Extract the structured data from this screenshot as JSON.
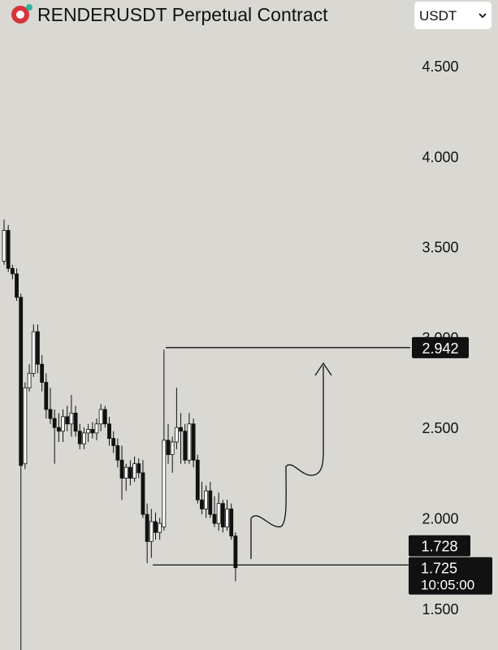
{
  "header": {
    "title": "RENDERUSDT Perpetual Contract",
    "currency": "USDT"
  },
  "chart_data": {
    "type": "candlestick",
    "open": [
      3.42,
      3.59,
      3.38,
      3.35,
      3.22,
      2.3,
      2.72,
      2.8,
      3.03,
      2.85,
      2.75,
      2.6,
      2.55,
      2.5,
      2.48,
      2.56,
      2.52,
      2.58,
      2.48,
      2.41,
      2.47,
      2.49,
      2.47,
      2.52,
      2.6,
      2.52,
      2.44,
      2.4,
      2.32,
      2.22,
      2.28,
      2.22,
      2.3,
      2.25,
      2.02,
      1.87,
      1.98,
      1.92,
      1.95,
      2.43,
      2.35,
      2.42,
      2.5,
      2.48,
      2.32,
      2.52,
      2.32,
      2.1,
      2.05,
      2.15,
      2.02,
      1.97,
      2.08,
      1.95,
      2.05,
      1.9
    ],
    "high": [
      3.65,
      3.62,
      3.4,
      3.38,
      3.24,
      2.75,
      2.85,
      3.07,
      3.07,
      2.9,
      2.8,
      2.72,
      2.6,
      2.58,
      2.6,
      2.62,
      2.68,
      2.62,
      2.52,
      2.5,
      2.52,
      2.53,
      2.55,
      2.63,
      2.62,
      2.56,
      2.48,
      2.44,
      2.4,
      2.3,
      2.32,
      2.34,
      2.33,
      2.32,
      2.08,
      2.05,
      2.03,
      2.0,
      2.93,
      2.52,
      2.45,
      2.72,
      2.58,
      2.52,
      2.58,
      2.55,
      2.35,
      2.2,
      2.18,
      2.2,
      2.12,
      2.14,
      2.1,
      2.1,
      2.08,
      1.92
    ],
    "low": [
      3.4,
      3.36,
      3.32,
      3.2,
      1.27,
      2.27,
      2.7,
      2.78,
      2.8,
      2.7,
      2.55,
      2.52,
      2.3,
      2.42,
      2.42,
      2.48,
      2.45,
      2.45,
      2.38,
      2.38,
      2.42,
      2.44,
      2.43,
      2.48,
      2.5,
      2.4,
      2.36,
      2.28,
      2.1,
      2.15,
      2.18,
      2.2,
      2.22,
      2.0,
      1.75,
      1.78,
      1.88,
      1.88,
      1.93,
      2.3,
      2.25,
      2.38,
      2.3,
      2.3,
      2.3,
      2.28,
      2.08,
      2.02,
      2.0,
      2.0,
      1.95,
      1.93,
      1.92,
      1.93,
      1.88,
      1.65
    ],
    "close": [
      3.59,
      3.38,
      3.35,
      3.22,
      2.29,
      2.72,
      2.8,
      3.03,
      2.85,
      2.75,
      2.6,
      2.55,
      2.5,
      2.48,
      2.56,
      2.52,
      2.58,
      2.48,
      2.41,
      2.47,
      2.49,
      2.47,
      2.52,
      2.6,
      2.52,
      2.44,
      2.4,
      2.32,
      2.22,
      2.28,
      2.22,
      2.3,
      2.25,
      2.02,
      1.87,
      1.98,
      1.92,
      1.97,
      2.43,
      2.35,
      2.42,
      2.5,
      2.48,
      2.32,
      2.52,
      2.32,
      2.1,
      2.05,
      2.15,
      2.02,
      1.97,
      2.08,
      1.95,
      2.05,
      1.9,
      1.725
    ],
    "ylim": [
      1.27,
      4.864
    ],
    "yticks": [
      {
        "value": 1.5,
        "label": "1.500"
      },
      {
        "value": 2.0,
        "label": "2.000"
      },
      {
        "value": 2.5,
        "label": "2.500"
      },
      {
        "value": 3.0,
        "label": "3.000"
      },
      {
        "value": 3.5,
        "label": "3.500"
      },
      {
        "value": 4.0,
        "label": "4.000"
      },
      {
        "value": 4.5,
        "label": "4.500"
      }
    ],
    "target_line": 2.942,
    "support_line": 1.74,
    "marker_price": 1.728,
    "last_price": 1.725,
    "countdown": "10:05:00"
  }
}
